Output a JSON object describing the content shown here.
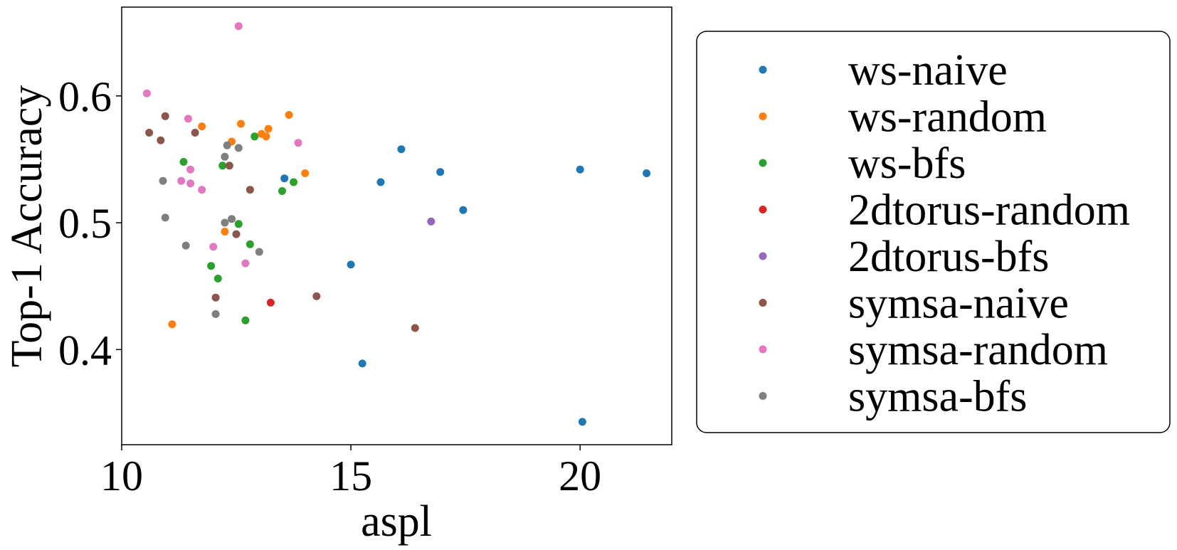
{
  "chart_data": {
    "type": "scatter",
    "xlabel": "aspl",
    "ylabel": "Top-1 Accuracy",
    "xlim": [
      10,
      22
    ],
    "ylim": [
      0.325,
      0.67
    ],
    "xticks": [
      10,
      15,
      20
    ],
    "yticks": [
      0.4,
      0.5,
      0.6
    ],
    "xtick_labels": [
      "10",
      "15",
      "20"
    ],
    "ytick_labels": [
      "0.4",
      "0.5",
      "0.6"
    ],
    "grid": false,
    "legend_position": "right",
    "series": [
      {
        "name": "ws-naive",
        "color": "#1f77b4",
        "points": [
          [
            13.55,
            0.535
          ],
          [
            16.1,
            0.558
          ],
          [
            15.65,
            0.532
          ],
          [
            16.95,
            0.54
          ],
          [
            17.45,
            0.51
          ],
          [
            15.0,
            0.467
          ],
          [
            15.25,
            0.389
          ],
          [
            20.0,
            0.542
          ],
          [
            21.45,
            0.539
          ],
          [
            20.05,
            0.343
          ]
        ]
      },
      {
        "name": "ws-random",
        "color": "#ff7f0e",
        "points": [
          [
            11.75,
            0.576
          ],
          [
            12.6,
            0.578
          ],
          [
            13.65,
            0.585
          ],
          [
            12.4,
            0.564
          ],
          [
            13.05,
            0.57
          ],
          [
            13.15,
            0.568
          ],
          [
            13.2,
            0.574
          ],
          [
            14.0,
            0.539
          ],
          [
            12.25,
            0.493
          ],
          [
            11.1,
            0.42
          ]
        ]
      },
      {
        "name": "ws-bfs",
        "color": "#2ca02c",
        "points": [
          [
            11.35,
            0.548
          ],
          [
            12.2,
            0.545
          ],
          [
            12.9,
            0.568
          ],
          [
            13.5,
            0.525
          ],
          [
            13.75,
            0.532
          ],
          [
            12.55,
            0.499
          ],
          [
            12.8,
            0.483
          ],
          [
            11.95,
            0.466
          ],
          [
            12.1,
            0.456
          ],
          [
            12.7,
            0.423
          ]
        ]
      },
      {
        "name": "2dtorus-random",
        "color": "#d62728",
        "points": [
          [
            13.25,
            0.437
          ]
        ]
      },
      {
        "name": "2dtorus-bfs",
        "color": "#9467bd",
        "points": [
          [
            16.75,
            0.501
          ]
        ]
      },
      {
        "name": "symsa-naive",
        "color": "#8c564b",
        "points": [
          [
            10.95,
            0.584
          ],
          [
            10.6,
            0.571
          ],
          [
            10.85,
            0.565
          ],
          [
            11.6,
            0.571
          ],
          [
            12.35,
            0.545
          ],
          [
            12.8,
            0.526
          ],
          [
            12.5,
            0.491
          ],
          [
            12.05,
            0.441
          ],
          [
            14.25,
            0.442
          ],
          [
            16.4,
            0.417
          ]
        ]
      },
      {
        "name": "symsa-random",
        "color": "#e377c2",
        "points": [
          [
            12.55,
            0.655
          ],
          [
            10.55,
            0.602
          ],
          [
            11.45,
            0.582
          ],
          [
            13.85,
            0.563
          ],
          [
            11.5,
            0.542
          ],
          [
            11.3,
            0.533
          ],
          [
            11.5,
            0.531
          ],
          [
            11.75,
            0.526
          ],
          [
            12.0,
            0.481
          ],
          [
            12.7,
            0.468
          ]
        ]
      },
      {
        "name": "symsa-bfs",
        "color": "#7f7f7f",
        "points": [
          [
            12.3,
            0.561
          ],
          [
            12.55,
            0.559
          ],
          [
            12.25,
            0.552
          ],
          [
            10.9,
            0.533
          ],
          [
            10.95,
            0.504
          ],
          [
            12.25,
            0.5
          ],
          [
            12.4,
            0.503
          ],
          [
            11.4,
            0.482
          ],
          [
            13.0,
            0.477
          ],
          [
            12.05,
            0.428
          ]
        ]
      }
    ]
  }
}
